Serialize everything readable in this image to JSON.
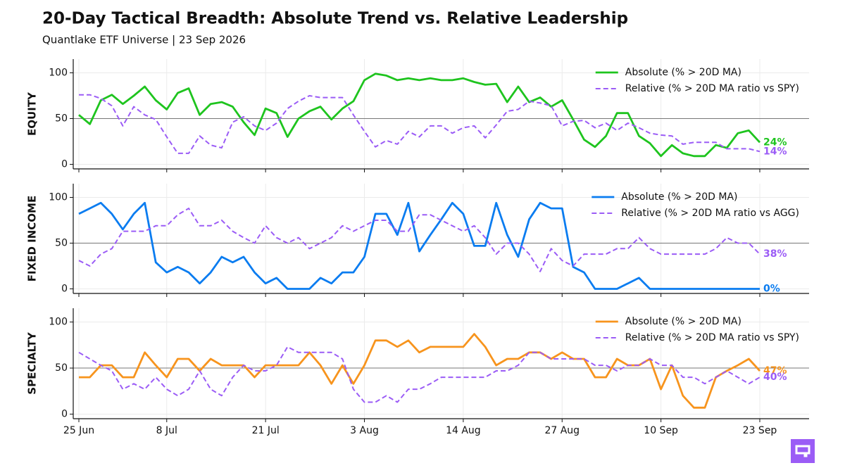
{
  "title": "20-Day Tactical Breadth: Absolute Trend vs. Relative Leadership",
  "subtitle": "Quantlake ETF Universe  |  23 Sep 2026",
  "categories": [
    "25 Jun",
    null,
    null,
    null,
    null,
    null,
    null,
    null,
    "8 Jul",
    null,
    null,
    null,
    null,
    null,
    null,
    null,
    null,
    "21 Jul",
    null,
    null,
    null,
    null,
    null,
    null,
    null,
    null,
    "3 Aug",
    null,
    null,
    null,
    null,
    null,
    null,
    null,
    null,
    "14 Aug",
    null,
    null,
    null,
    null,
    null,
    null,
    null,
    null,
    "27 Aug",
    null,
    null,
    null,
    null,
    null,
    null,
    null,
    null,
    "10 Sep",
    null,
    null,
    null,
    null,
    null,
    null,
    null,
    null,
    "23 Sep"
  ],
  "chart_data": [
    {
      "type": "line",
      "ylabel": "EQUITY",
      "ylim": [
        -5,
        115
      ],
      "yticks": [
        0,
        50,
        100
      ],
      "grid": true,
      "hline": 50,
      "legend": "upper right",
      "series": [
        {
          "name": "Absolute (% > 20D MA)",
          "color": "#1ec41e",
          "dash": false,
          "values": [
            54,
            44,
            70,
            76,
            66,
            75,
            85,
            70,
            60,
            78,
            83,
            54,
            66,
            68,
            63,
            46,
            32,
            61,
            56,
            30,
            50,
            58,
            63,
            49,
            61,
            69,
            92,
            99,
            97,
            92,
            94,
            92,
            94,
            92,
            92,
            94,
            90,
            87,
            88,
            68,
            85,
            68,
            73,
            63,
            70,
            49,
            27,
            19,
            31,
            56,
            56,
            31,
            23,
            9,
            21,
            12,
            9,
            9,
            21,
            18,
            34,
            37,
            24
          ],
          "value_labels": [
            null,
            null,
            null,
            null,
            null,
            null,
            null,
            null,
            null,
            null,
            null,
            null,
            null,
            null,
            null,
            null,
            null,
            null,
            null,
            null,
            null,
            null,
            null,
            null,
            null,
            null,
            null,
            null,
            null,
            null,
            null,
            null,
            null,
            null,
            null,
            null,
            null,
            null,
            null,
            null,
            null,
            null,
            null,
            null,
            null,
            null,
            null,
            null,
            null,
            null,
            null,
            null,
            null,
            null,
            null,
            null,
            null,
            null,
            null,
            null,
            null,
            null,
            "24%"
          ]
        },
        {
          "name": "Relative (% > 20D MA ratio vs SPY)",
          "color": "#9b5cf6",
          "dash": true,
          "values": [
            76,
            76,
            72,
            64,
            42,
            63,
            54,
            49,
            30,
            12,
            12,
            31,
            21,
            18,
            46,
            52,
            42,
            37,
            45,
            61,
            69,
            75,
            73,
            73,
            73,
            54,
            36,
            19,
            26,
            22,
            36,
            30,
            42,
            42,
            34,
            40,
            42,
            29,
            43,
            58,
            60,
            69,
            67,
            64,
            42,
            47,
            48,
            40,
            45,
            37,
            45,
            40,
            34,
            32,
            31,
            22,
            24,
            24,
            24,
            17,
            17,
            17,
            14
          ],
          "value_labels": [
            null,
            null,
            null,
            null,
            null,
            null,
            null,
            null,
            null,
            null,
            null,
            null,
            null,
            null,
            null,
            null,
            null,
            null,
            null,
            null,
            null,
            null,
            null,
            null,
            null,
            null,
            null,
            null,
            null,
            null,
            null,
            null,
            null,
            null,
            null,
            null,
            null,
            null,
            null,
            null,
            null,
            null,
            null,
            null,
            null,
            null,
            null,
            null,
            null,
            null,
            null,
            null,
            null,
            null,
            null,
            null,
            null,
            null,
            null,
            null,
            null,
            null,
            "14%"
          ]
        }
      ]
    },
    {
      "type": "line",
      "ylabel": "FIXED INCOME",
      "ylim": [
        -5,
        115
      ],
      "yticks": [
        0,
        50,
        100
      ],
      "grid": true,
      "hline": 50,
      "legend": "upper right",
      "series": [
        {
          "name": "Absolute (% > 20D MA)",
          "color": "#0a7cf0",
          "dash": false,
          "values": [
            82,
            88,
            94,
            82,
            65,
            82,
            94,
            29,
            18,
            24,
            18,
            6,
            18,
            35,
            29,
            35,
            18,
            6,
            12,
            0,
            0,
            0,
            12,
            6,
            18,
            18,
            35,
            82,
            82,
            59,
            94,
            41,
            59,
            76,
            94,
            82,
            47,
            47,
            94,
            59,
            35,
            76,
            94,
            88,
            88,
            24,
            18,
            0,
            0,
            0,
            6,
            12,
            0,
            0,
            0,
            0,
            0,
            0,
            0,
            0,
            0,
            0,
            0
          ],
          "value_labels": [
            null,
            null,
            null,
            null,
            null,
            null,
            null,
            null,
            null,
            null,
            null,
            null,
            null,
            null,
            null,
            null,
            null,
            null,
            null,
            null,
            null,
            null,
            null,
            null,
            null,
            null,
            null,
            null,
            null,
            null,
            null,
            null,
            null,
            null,
            null,
            null,
            null,
            null,
            null,
            null,
            null,
            null,
            null,
            null,
            null,
            null,
            null,
            null,
            null,
            null,
            null,
            null,
            null,
            null,
            null,
            null,
            null,
            null,
            null,
            null,
            null,
            null,
            "0%"
          ]
        },
        {
          "name": "Relative (% > 20D MA ratio vs AGG)",
          "color": "#9b5cf6",
          "dash": true,
          "values": [
            31,
            25,
            38,
            44,
            63,
            63,
            63,
            69,
            69,
            81,
            88,
            69,
            69,
            75,
            63,
            56,
            50,
            69,
            56,
            50,
            56,
            44,
            50,
            56,
            69,
            63,
            69,
            75,
            75,
            63,
            63,
            81,
            81,
            75,
            69,
            63,
            69,
            56,
            38,
            50,
            50,
            38,
            19,
            44,
            31,
            25,
            38,
            38,
            38,
            44,
            44,
            56,
            44,
            38,
            38,
            38,
            38,
            38,
            44,
            56,
            50,
            50,
            38
          ],
          "value_labels": [
            null,
            null,
            null,
            null,
            null,
            null,
            null,
            null,
            null,
            null,
            null,
            null,
            null,
            null,
            null,
            null,
            null,
            null,
            null,
            null,
            null,
            null,
            null,
            null,
            null,
            null,
            null,
            null,
            null,
            null,
            null,
            null,
            null,
            null,
            null,
            null,
            null,
            null,
            null,
            null,
            null,
            null,
            null,
            null,
            null,
            null,
            null,
            null,
            null,
            null,
            null,
            null,
            null,
            null,
            null,
            null,
            null,
            null,
            null,
            null,
            null,
            null,
            "38%"
          ]
        }
      ]
    },
    {
      "type": "line",
      "ylabel": "SPECIALTY",
      "ylim": [
        -5,
        115
      ],
      "yticks": [
        0,
        50,
        100
      ],
      "grid": true,
      "hline": 50,
      "legend": "upper right",
      "series": [
        {
          "name": "Absolute (% > 20D MA)",
          "color": "#f7941d",
          "dash": false,
          "values": [
            40,
            40,
            53,
            53,
            40,
            40,
            67,
            53,
            40,
            60,
            60,
            47,
            60,
            53,
            53,
            53,
            40,
            53,
            53,
            53,
            53,
            67,
            53,
            33,
            53,
            33,
            53,
            80,
            80,
            73,
            80,
            67,
            73,
            73,
            73,
            73,
            87,
            73,
            53,
            60,
            60,
            67,
            67,
            60,
            67,
            60,
            60,
            40,
            40,
            60,
            53,
            53,
            60,
            27,
            53,
            20,
            7,
            7,
            40,
            47,
            53,
            60,
            47
          ],
          "value_labels": [
            null,
            null,
            null,
            null,
            null,
            null,
            null,
            null,
            null,
            null,
            null,
            null,
            null,
            null,
            null,
            null,
            null,
            null,
            null,
            null,
            null,
            null,
            null,
            null,
            null,
            null,
            null,
            null,
            null,
            null,
            null,
            null,
            null,
            null,
            null,
            null,
            null,
            null,
            null,
            null,
            null,
            null,
            null,
            null,
            null,
            null,
            null,
            null,
            null,
            null,
            null,
            null,
            null,
            null,
            null,
            null,
            null,
            null,
            null,
            null,
            null,
            null,
            "47%"
          ]
        },
        {
          "name": "Relative (% > 20D MA ratio vs SPY)",
          "color": "#9b5cf6",
          "dash": true,
          "values": [
            67,
            60,
            53,
            47,
            27,
            33,
            27,
            40,
            27,
            20,
            27,
            47,
            27,
            20,
            40,
            53,
            47,
            47,
            53,
            73,
            67,
            67,
            67,
            67,
            60,
            27,
            13,
            13,
            20,
            13,
            27,
            27,
            33,
            40,
            40,
            40,
            40,
            40,
            47,
            47,
            53,
            67,
            67,
            60,
            60,
            60,
            60,
            53,
            53,
            47,
            53,
            53,
            60,
            53,
            53,
            40,
            40,
            33,
            40,
            47,
            40,
            33,
            40
          ],
          "value_labels": [
            null,
            null,
            null,
            null,
            null,
            null,
            null,
            null,
            null,
            null,
            null,
            null,
            null,
            null,
            null,
            null,
            null,
            null,
            null,
            null,
            null,
            null,
            null,
            null,
            null,
            null,
            null,
            null,
            null,
            null,
            null,
            null,
            null,
            null,
            null,
            null,
            null,
            null,
            null,
            null,
            null,
            null,
            null,
            null,
            null,
            null,
            null,
            null,
            null,
            null,
            null,
            null,
            null,
            null,
            null,
            null,
            null,
            null,
            null,
            null,
            null,
            null,
            "40%"
          ]
        }
      ]
    }
  ]
}
